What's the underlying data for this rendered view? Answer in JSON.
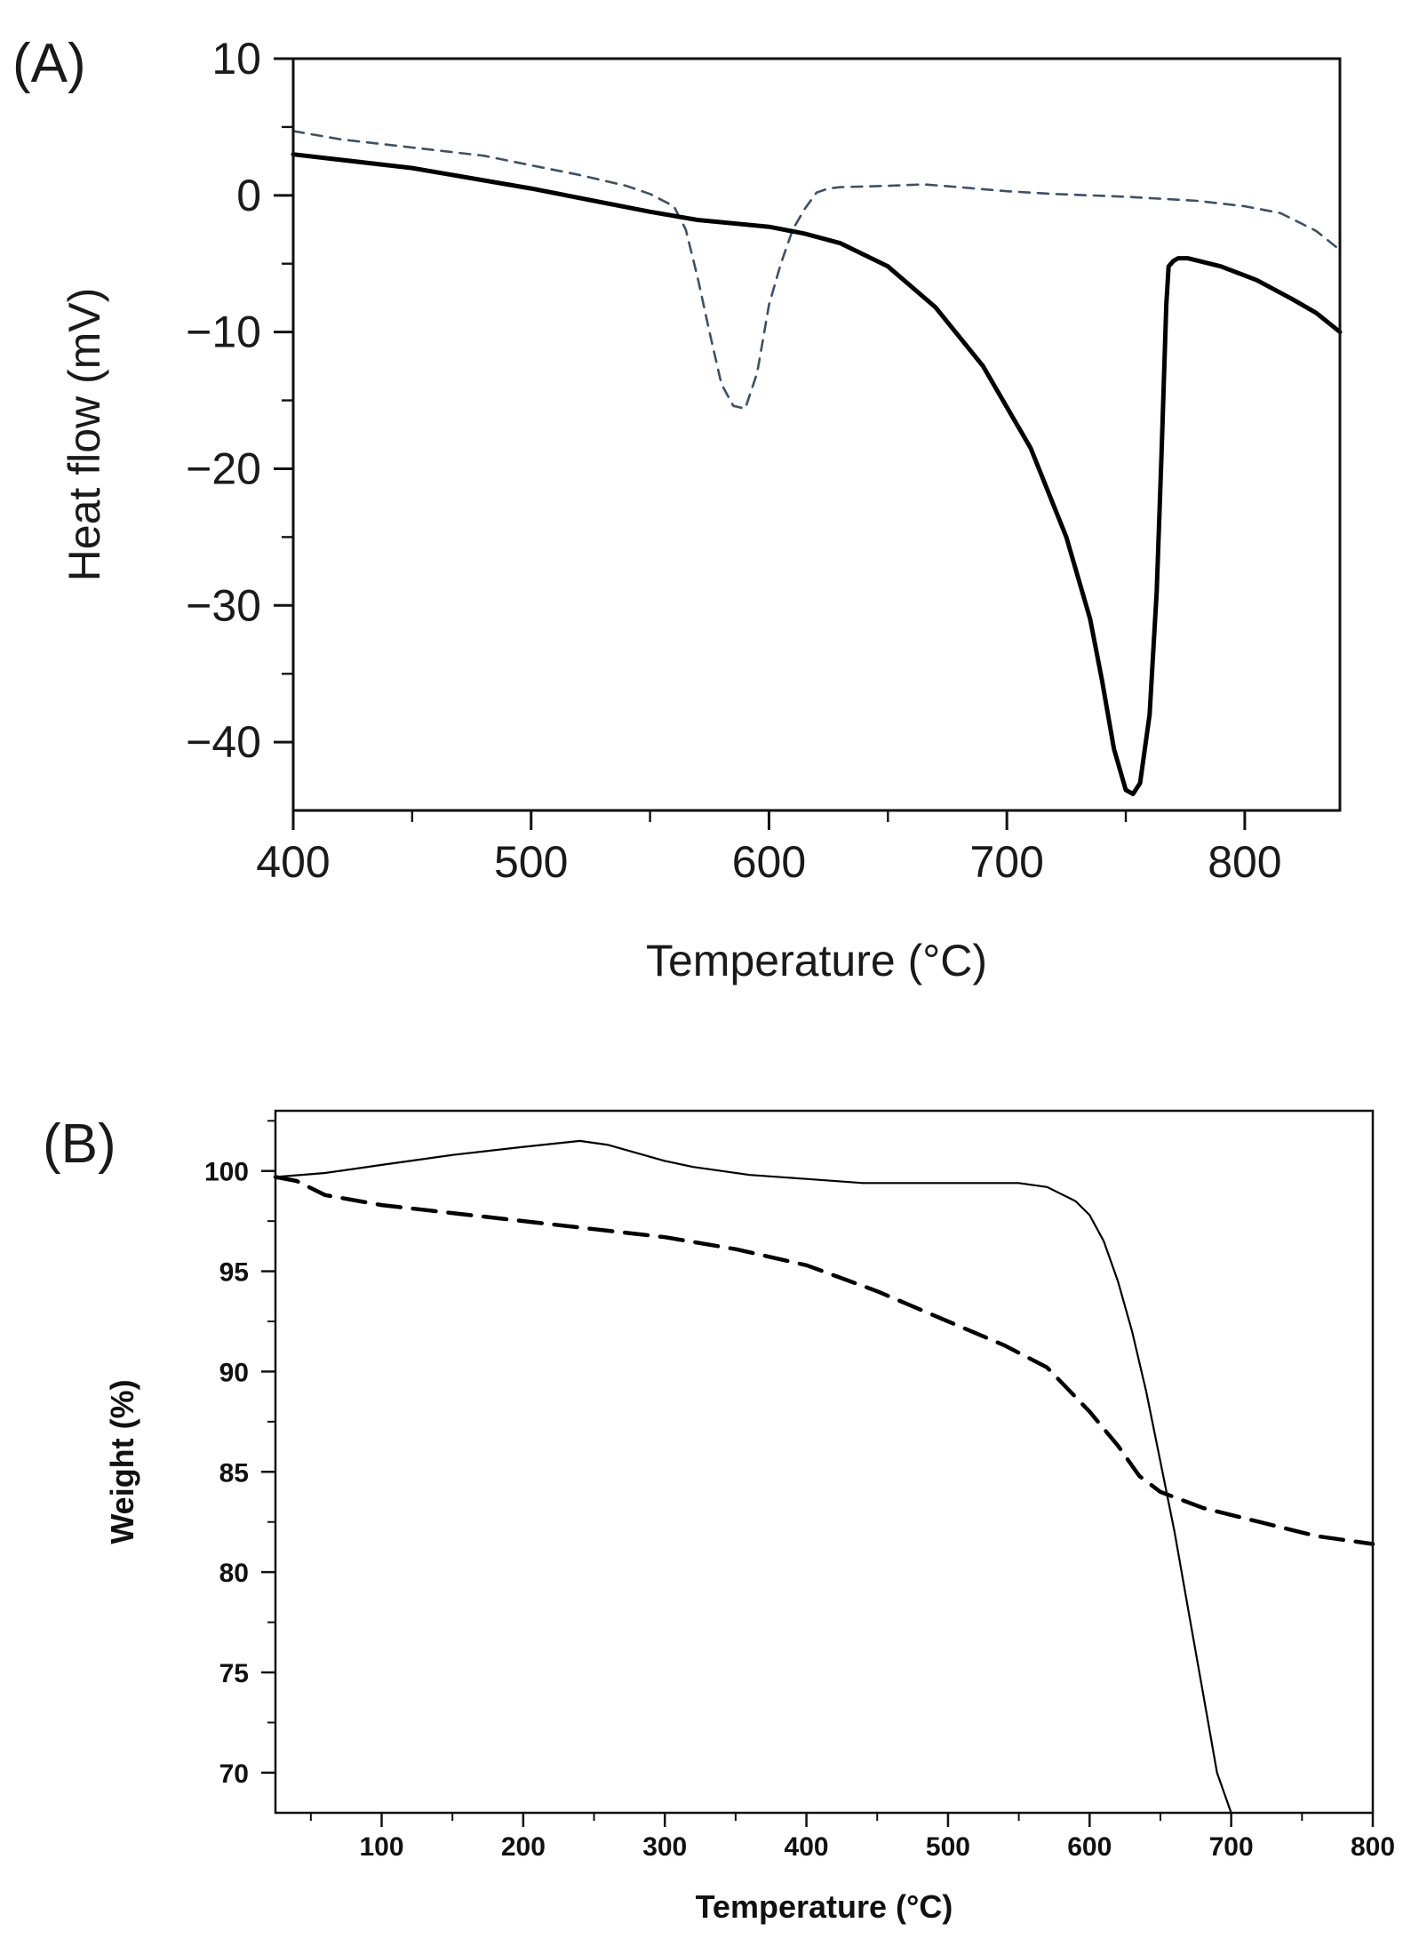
{
  "chart_data": [
    {
      "panel": "(A)",
      "type": "line",
      "xlabel": "Temperature (°C)",
      "ylabel": "Heat flow (mV)",
      "xlim": [
        400,
        840
      ],
      "ylim": [
        -45,
        10
      ],
      "xticks": [
        400,
        500,
        600,
        700,
        800
      ],
      "yticks": [
        10,
        0,
        -10,
        -20,
        -30,
        -40
      ],
      "xtick_labels": [
        "400",
        "500",
        "600",
        "700",
        "800"
      ],
      "ytick_labels": [
        "10",
        "0",
        "−10",
        "−20",
        "−30",
        "−40"
      ],
      "series": [
        {
          "name": "dashed",
          "style": "dashed",
          "color": "#3d5068",
          "x": [
            400,
            420,
            450,
            480,
            500,
            520,
            540,
            550,
            560,
            565,
            570,
            575,
            580,
            585,
            590,
            595,
            600,
            605,
            610,
            615,
            620,
            625,
            630,
            650,
            665,
            680,
            700,
            720,
            750,
            780,
            800,
            815,
            830,
            840
          ],
          "y": [
            4.7,
            4.1,
            3.5,
            2.9,
            2.2,
            1.5,
            0.7,
            0.1,
            -0.8,
            -2.5,
            -6.0,
            -10.0,
            -13.8,
            -15.4,
            -15.6,
            -13.0,
            -8.0,
            -5.0,
            -2.5,
            -1.0,
            0.2,
            0.5,
            0.6,
            0.7,
            0.8,
            0.6,
            0.3,
            0.1,
            -0.1,
            -0.4,
            -0.8,
            -1.3,
            -2.6,
            -4.0
          ]
        },
        {
          "name": "solid",
          "style": "solid",
          "color": "#000000",
          "x": [
            400,
            450,
            500,
            550,
            570,
            600,
            615,
            630,
            650,
            670,
            690,
            710,
            725,
            735,
            740,
            745,
            750,
            753,
            756,
            760,
            763,
            765,
            767,
            768,
            770,
            772,
            776,
            790,
            805,
            820,
            830,
            840
          ],
          "y": [
            3.0,
            2.0,
            0.5,
            -1.2,
            -1.8,
            -2.3,
            -2.8,
            -3.5,
            -5.2,
            -8.2,
            -12.5,
            -18.5,
            -25.0,
            -31.0,
            -35.5,
            -40.5,
            -43.5,
            -43.8,
            -43.0,
            -38.0,
            -29.0,
            -19.0,
            -8.0,
            -5.2,
            -4.8,
            -4.6,
            -4.6,
            -5.2,
            -6.2,
            -7.6,
            -8.6,
            -10.0
          ]
        }
      ]
    },
    {
      "panel": "(B)",
      "type": "line",
      "xlabel": "Temperature (°C)",
      "ylabel": "Weight (%)",
      "xlim": [
        25,
        800
      ],
      "ylim": [
        68,
        103
      ],
      "xticks": [
        100,
        200,
        300,
        400,
        500,
        600,
        700,
        800
      ],
      "yticks": [
        100,
        95,
        90,
        85,
        80,
        75,
        70
      ],
      "xtick_labels": [
        "100",
        "200",
        "300",
        "400",
        "500",
        "600",
        "700",
        "800"
      ],
      "ytick_labels": [
        "100",
        "95",
        "90",
        "85",
        "80",
        "75",
        "70"
      ],
      "series": [
        {
          "name": "solid",
          "style": "solid",
          "color": "#000000",
          "x": [
            25,
            60,
            100,
            150,
            200,
            240,
            260,
            300,
            320,
            360,
            400,
            440,
            500,
            550,
            570,
            590,
            600,
            610,
            620,
            630,
            640,
            650,
            660,
            670,
            680,
            690,
            700
          ],
          "y": [
            99.7,
            99.9,
            100.3,
            100.8,
            101.2,
            101.5,
            101.3,
            100.5,
            100.2,
            99.8,
            99.6,
            99.4,
            99.4,
            99.4,
            99.2,
            98.5,
            97.8,
            96.5,
            94.5,
            92.0,
            89.0,
            85.5,
            82.0,
            78.0,
            74.0,
            70.0,
            68.0
          ]
        },
        {
          "name": "dashed",
          "style": "dashed",
          "color": "#000000",
          "x": [
            25,
            40,
            60,
            100,
            150,
            200,
            250,
            300,
            350,
            400,
            450,
            500,
            540,
            570,
            600,
            620,
            635,
            650,
            680,
            720,
            760,
            800
          ],
          "y": [
            99.7,
            99.5,
            98.8,
            98.3,
            97.9,
            97.5,
            97.1,
            96.7,
            96.1,
            95.3,
            94.0,
            92.5,
            91.3,
            90.2,
            88.0,
            86.3,
            84.8,
            84.0,
            83.2,
            82.5,
            81.8,
            81.4
          ]
        }
      ]
    }
  ]
}
